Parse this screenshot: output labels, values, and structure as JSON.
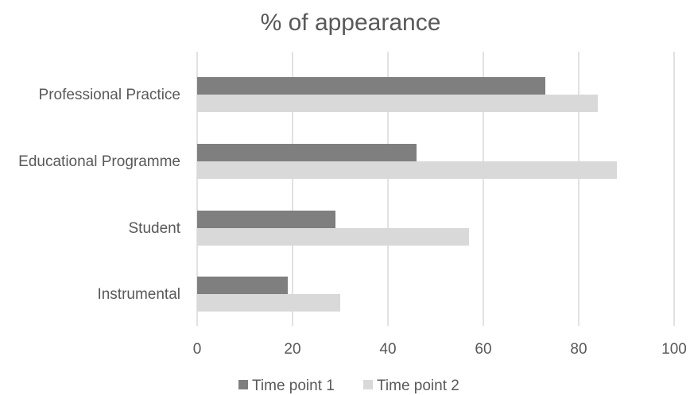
{
  "chart_data": {
    "type": "bar",
    "orientation": "horizontal",
    "title": "% of appearance",
    "xlabel": "",
    "ylabel": "",
    "categories": [
      "Professional Practice",
      "Educational Programme",
      "Student",
      "Instrumental"
    ],
    "series": [
      {
        "name": "Time point 1",
        "color": "#7f7f7f",
        "values": [
          73,
          46,
          29,
          19
        ]
      },
      {
        "name": "Time point 2",
        "color": "#d9d9d9",
        "values": [
          84,
          88,
          57,
          30
        ]
      }
    ],
    "xlim": [
      0,
      100
    ],
    "xticks": [
      0,
      20,
      40,
      60,
      80,
      100
    ],
    "grid": true,
    "legend_position": "bottom"
  }
}
